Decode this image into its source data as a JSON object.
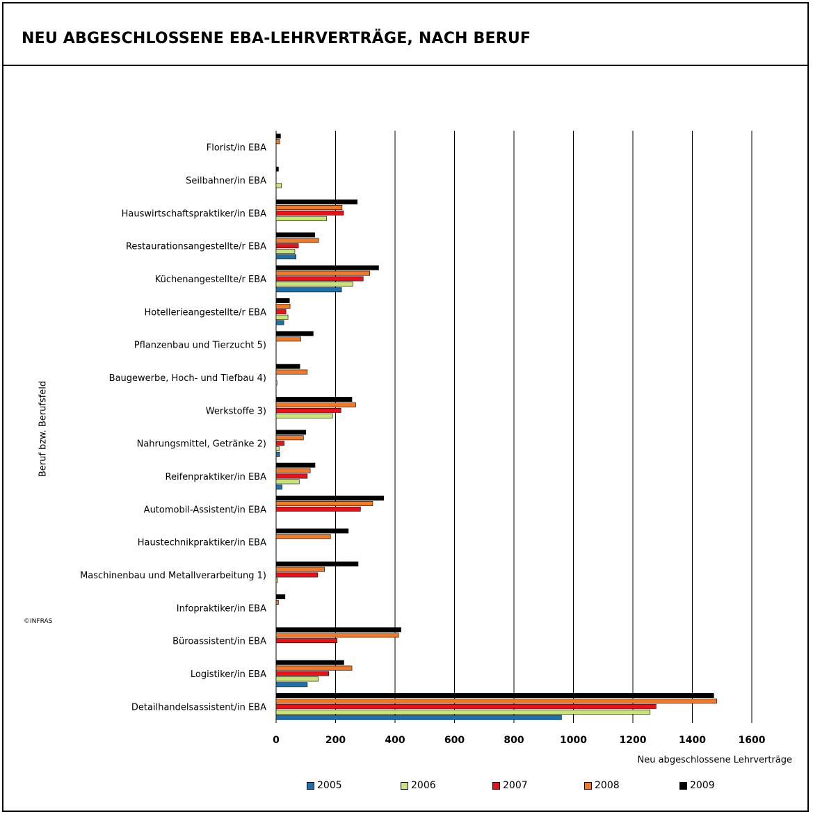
{
  "header": {
    "title": "NEU ABGESCHLOSSENE EBA-LEHRVERTRÄGE, NACH BERUF"
  },
  "footer": {
    "copyright": "©INFRAS"
  },
  "chart_data": {
    "type": "bar",
    "orientation": "horizontal",
    "title": "NEU ABGESCHLOSSENE EBA-LEHRVERTRÄGE, NACH BERUF",
    "xlabel": "Neu abgeschlossene Lehrverträge",
    "ylabel": "Beruf bzw. Berufsfeld",
    "xlim": [
      0,
      1600
    ],
    "xticks": [
      0,
      200,
      400,
      600,
      800,
      1000,
      1200,
      1400,
      1600
    ],
    "grid": "vertical",
    "legend_position": "bottom",
    "categories": [
      "Florist/in EBA",
      "Seilbahner/in EBA",
      "Hauswirtschaftspraktiker/in EBA",
      "Restaurationsangestellte/r EBA",
      "Küchenangestellte/r EBA",
      "Hotellerieangestellte/r EBA",
      "Pflanzenbau und Tierzucht 5)",
      "Baugewerbe, Hoch- und Tiefbau 4)",
      "Werkstoffe 3)",
      "Nahrungsmittel, Getränke 2)",
      "Reifenpraktiker/in EBA",
      "Automobil-Assistent/in EBA",
      "Haustechnikpraktiker/in EBA",
      "Maschinenbau und Metallverarbeitung 1)",
      "Infopraktiker/in EBA",
      "Büroassistent/in EBA",
      "Logistiker/in EBA",
      "Detailhandelsassistent/in EBA"
    ],
    "series": [
      {
        "name": "2005",
        "color": "#1f6fa8",
        "values": [
          0,
          0,
          0,
          67,
          220,
          26,
          0,
          0,
          0,
          12,
          20,
          0,
          0,
          0,
          0,
          0,
          105,
          960
        ]
      },
      {
        "name": "2006",
        "color": "#c8e37a",
        "values": [
          0,
          18,
          170,
          63,
          258,
          40,
          0,
          3,
          190,
          10,
          78,
          0,
          0,
          5,
          0,
          0,
          142,
          1258
        ]
      },
      {
        "name": "2007",
        "color": "#e8121b",
        "values": [
          0,
          0,
          227,
          75,
          293,
          33,
          0,
          0,
          218,
          27,
          105,
          284,
          0,
          140,
          0,
          205,
          177,
          1278
        ]
      },
      {
        "name": "2008",
        "color": "#f07a2a",
        "values": [
          12,
          0,
          222,
          143,
          315,
          47,
          83,
          105,
          268,
          92,
          115,
          325,
          183,
          163,
          8,
          412,
          255,
          1482
        ]
      },
      {
        "name": "2009",
        "color": "#000000",
        "values": [
          15,
          8,
          273,
          130,
          345,
          45,
          125,
          80,
          255,
          100,
          131,
          362,
          243,
          276,
          30,
          420,
          228,
          1472
        ]
      }
    ]
  }
}
